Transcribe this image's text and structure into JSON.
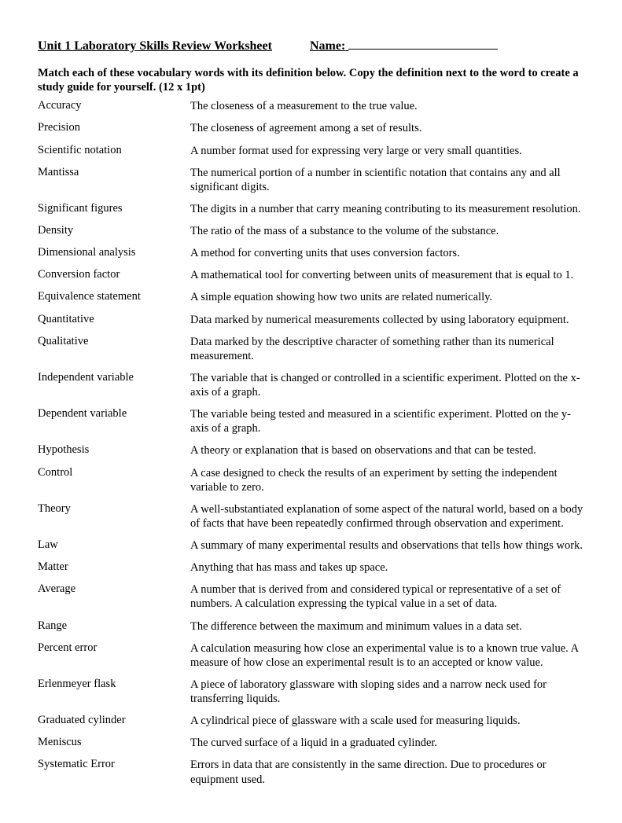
{
  "header": {
    "title": "Unit 1 Laboratory Skills Review Worksheet",
    "name_label": "Name:"
  },
  "instructions": "Match each of these vocabulary words with its definition below. Copy the definition next to the word to create a study guide for yourself. (12 x 1pt)",
  "rows": [
    {
      "term": "Accuracy",
      "definition": "The closeness of a measurement to the true value."
    },
    {
      "term": "Precision",
      "definition": "The closeness of agreement among a set of results."
    },
    {
      "term": "Scientific notation",
      "definition": "A number format used for expressing very large or very small quantities."
    },
    {
      "term": "Mantissa",
      "definition": "The numerical portion of a number in scientific notation that contains any and all significant digits."
    },
    {
      "term": "Significant figures",
      "definition": "The digits in a number that carry meaning contributing to its measurement resolution."
    },
    {
      "term": "Density",
      "definition": "The ratio of the mass of a substance to the volume of the substance."
    },
    {
      "term": "Dimensional analysis",
      "definition": "A method for converting units that uses conversion factors."
    },
    {
      "term": "Conversion factor",
      "definition": "A mathematical tool for converting between units of measurement that is equal to 1."
    },
    {
      "term": "Equivalence statement",
      "definition": "A simple equation showing how two units are related numerically."
    },
    {
      "term": "Quantitative",
      "definition": "Data marked by numerical measurements collected by using laboratory equipment."
    },
    {
      "term": "Qualitative",
      "definition": "Data marked by the descriptive character of something rather than its numerical measurement."
    },
    {
      "term": "Independent variable",
      "definition": "The variable that is changed or controlled in a scientific experiment. Plotted on the x-axis of a graph."
    },
    {
      "term": "Dependent variable",
      "definition": "The variable being tested and measured in a scientific experiment. Plotted on the y-axis of a graph."
    },
    {
      "term": "Hypothesis",
      "definition": "A theory or explanation that is based on observations and that can be tested."
    },
    {
      "term": "Control",
      "definition": "A case designed to check the results of an experiment by setting the independent variable to zero."
    },
    {
      "term": "Theory",
      "definition": "A well-substantiated explanation of some aspect of the natural world, based on a body of facts that have been repeatedly confirmed through observation and experiment."
    },
    {
      "term": "Law",
      "definition": "A summary of many experimental results and observations that tells how things work."
    },
    {
      "term": "Matter",
      "definition": "Anything that has mass and takes up space."
    },
    {
      "term": "Average",
      "definition": "A number that is derived from and considered typical or representative of a set of numbers. A calculation expressing the typical value in a set of data."
    },
    {
      "term": "Range",
      "definition": "The difference between the maximum and minimum values in a data set."
    },
    {
      "term": "Percent error",
      "definition": "A calculation measuring how close an experimental value is to a known true value. A measure of how close an experimental result is to an accepted or know value."
    },
    {
      "term": "Erlenmeyer flask",
      "definition": "A piece of laboratory glassware with sloping sides and a narrow neck used for transferring liquids."
    },
    {
      "term": "Graduated cylinder",
      "definition": "A cylindrical piece of glassware with a scale used for measuring liquids."
    },
    {
      "term": "Meniscus",
      "definition": "The curved surface of a liquid in a graduated cylinder."
    },
    {
      "term": "Systematic Error",
      "definition": "Errors in data that are consistently in the same direction. Due to procedures or equipment used."
    }
  ]
}
